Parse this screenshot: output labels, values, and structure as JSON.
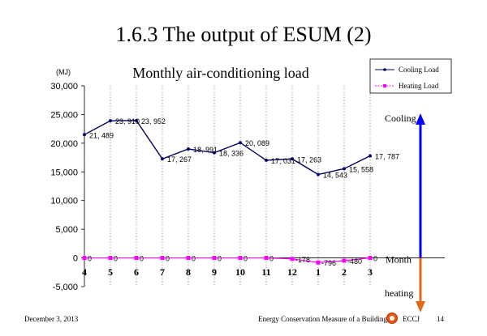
{
  "slide": {
    "title": "1.6.3  The output of ESUM (2)",
    "footer": {
      "date": "December 3, 2013",
      "organization": "Energy Conservation Measure of a Building",
      "logo_text": "ECCJ",
      "page": "14"
    }
  },
  "chart_data": {
    "type": "line",
    "title": "Monthly air-conditioning load",
    "ylabel": "",
    "unit_label": "(MJ)",
    "xlabel": "",
    "categories": [
      "4",
      "5",
      "6",
      "7",
      "8",
      "9",
      "10",
      "11",
      "12",
      "1",
      "2",
      "3"
    ],
    "ylim": [
      -5000,
      30000
    ],
    "yticks": [
      -5000,
      0,
      5000,
      10000,
      15000,
      20000,
      25000,
      30000
    ],
    "ytick_labels": [
      "-5,000",
      "0",
      "5,000",
      "10,000",
      "15,000",
      "20,000",
      "25,000",
      "30,000"
    ],
    "grid": "vertical",
    "legend": "top-right",
    "series": [
      {
        "name": "Cooling Load",
        "color": "#000066",
        "values": [
          21489,
          23910,
          23952,
          17267,
          18991,
          18336,
          20089,
          17031,
          17263,
          14543,
          15558,
          17787
        ],
        "labels": [
          "21, 489",
          "23, 910",
          "23, 952",
          "17, 267",
          "18, 991",
          "18, 336",
          "20, 089",
          "17, 031",
          "17, 263",
          "14, 543",
          "15, 558",
          "17, 787"
        ]
      },
      {
        "name": "Heating Load",
        "color": "#ff00ff",
        "values": [
          0,
          0,
          0,
          0,
          0,
          0,
          0,
          0,
          -178,
          -796,
          -480,
          0
        ],
        "labels": [
          "0",
          "0",
          "0",
          "0",
          "0",
          "0",
          "0",
          "0",
          "-178",
          "-796",
          "-480",
          "0"
        ]
      }
    ],
    "annotations": {
      "cooling": "Cooling",
      "month": "Month",
      "heating": "heating",
      "cooling_arrow_color": "#0000ff",
      "heating_arrow_color": "#e06a1a"
    }
  }
}
